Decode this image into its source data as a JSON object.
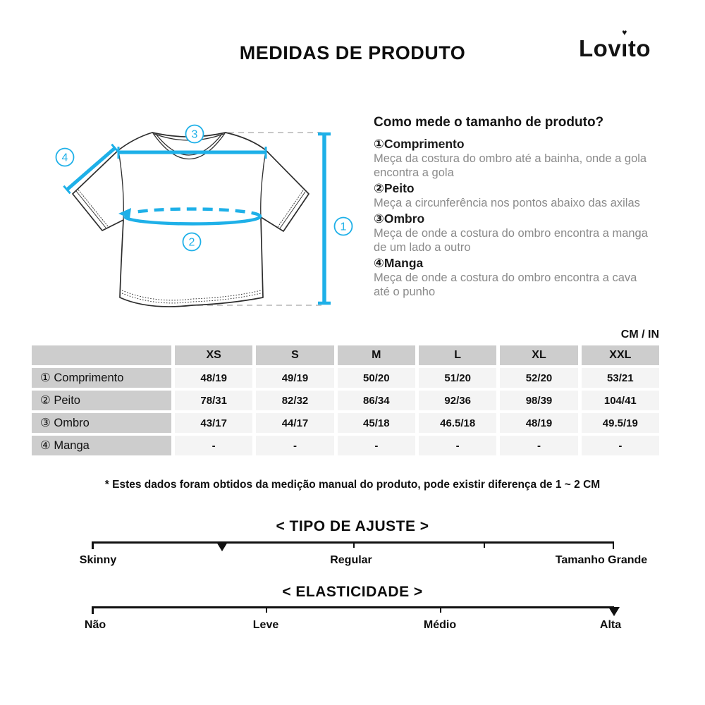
{
  "header": {
    "title": "MEDIDAS DE PRODUTO",
    "brand": {
      "pre": "Lov",
      "i_base": "ı",
      "post": "to",
      "heart_icon": "♥"
    }
  },
  "diagram": {
    "circle_labels": {
      "c1": "1",
      "c2": "2",
      "c3": "3",
      "c4": "4"
    },
    "accent_color": "#1eb0e8",
    "outline_color": "#2d2d2d",
    "dash_color": "#c8c8c8"
  },
  "howto": {
    "heading": "Como mede o tamanho de produto?",
    "items": [
      {
        "num": "①",
        "term": "Comprimento",
        "desc": "Meça da costura do ombro até a bainha, onde a gola encontra a gola"
      },
      {
        "num": "②",
        "term": "Peito",
        "desc": "Meça a circunferência nos pontos abaixo das axilas"
      },
      {
        "num": "③",
        "term": "Ombro",
        "desc": "Meça de onde a costura do ombro encontra a manga de um lado a outro"
      },
      {
        "num": "④",
        "term": "Manga",
        "desc": "Meça de onde a costura do ombro encontra a cava até o punho"
      }
    ]
  },
  "units_label": "CM / IN",
  "size_table": {
    "columns": [
      "XS",
      "S",
      "M",
      "L",
      "XL",
      "XXL"
    ],
    "rows": [
      {
        "label": "① Comprimento",
        "values": [
          "48/19",
          "49/19",
          "50/20",
          "51/20",
          "52/20",
          "53/21"
        ]
      },
      {
        "label": "② Peito",
        "values": [
          "78/31",
          "82/32",
          "86/34",
          "92/36",
          "98/39",
          "104/41"
        ]
      },
      {
        "label": "③ Ombro",
        "values": [
          "43/17",
          "44/17",
          "45/18",
          "46.5/18",
          "48/19",
          "49.5/19"
        ]
      },
      {
        "label": "④ Manga",
        "values": [
          "-",
          "-",
          "-",
          "-",
          "-",
          "-"
        ]
      }
    ],
    "header_bg": "#cdcdcd",
    "cell_bg": "#f4f4f4"
  },
  "footnote": "* Estes dados foram obtidos da medição manual do produto, pode existir diferença de 1 ~ 2 CM",
  "fit_scale": {
    "title": "< TIPO DE AJUSTE >",
    "labels": [
      "Skinny",
      "Regular",
      "Tamanho Grande"
    ],
    "marker_position_pct": 25
  },
  "elasticity_scale": {
    "title": "< ELASTICIDADE >",
    "labels": [
      "Não",
      "Leve",
      "Médio",
      "Alta"
    ],
    "marker_position_pct": 100
  }
}
